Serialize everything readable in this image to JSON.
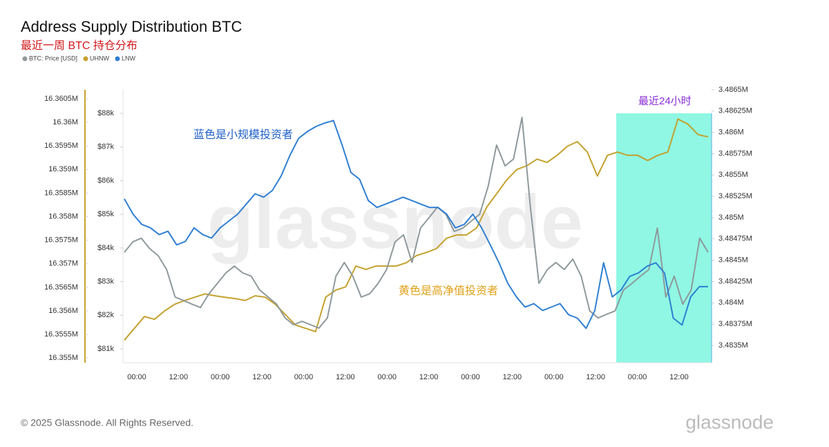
{
  "chart_data": {
    "type": "line",
    "title": "Address Supply Distribution BTC",
    "subtitle": "最近一周 BTC 持仓分布",
    "xticks": [
      "00:00",
      "12:00",
      "00:00",
      "12:00",
      "00:00",
      "12:00",
      "00:00",
      "12:00",
      "00:00",
      "12:00",
      "00:00",
      "12:00",
      "00:00",
      "12:00"
    ],
    "series": [
      {
        "name": "BTC: Price [USD]",
        "color": "#8f999c",
        "axis": "y",
        "values": [
          83870,
          84180,
          84290,
          83980,
          83770,
          83360,
          82540,
          82440,
          82330,
          82230,
          82640,
          82950,
          83260,
          83460,
          83260,
          83160,
          82750,
          82540,
          82330,
          81920,
          81720,
          81820,
          81720,
          81620,
          81920,
          83160,
          83570,
          83160,
          82540,
          82640,
          82950,
          83360,
          84180,
          84390,
          83570,
          84590,
          84900,
          85210,
          85000,
          84490,
          84590,
          84800,
          85000,
          85830,
          87060,
          86440,
          86640,
          87880,
          85210,
          82950,
          83360,
          83570,
          83360,
          83670,
          83160,
          82130,
          81920,
          82030,
          82130,
          82750,
          82950,
          83160,
          83360,
          84590,
          82540,
          83160,
          82330,
          82750,
          84290,
          83870
        ]
      },
      {
        "name": "UHNW",
        "color": "#c4a12e",
        "axis": "y3",
        "values": [
          16355380,
          16355630,
          16355880,
          16355820,
          16356000,
          16356140,
          16356220,
          16356290,
          16356360,
          16356320,
          16356290,
          16356260,
          16356220,
          16356320,
          16356290,
          16356140,
          16355920,
          16355700,
          16355630,
          16355560,
          16356290,
          16356440,
          16356510,
          16356950,
          16356880,
          16356950,
          16356950,
          16356950,
          16357020,
          16357170,
          16357240,
          16357320,
          16357540,
          16357610,
          16357610,
          16357760,
          16358200,
          16358490,
          16358780,
          16359000,
          16359080,
          16359220,
          16359150,
          16359300,
          16359490,
          16359590,
          16359370,
          16358860,
          16359300,
          16359370,
          16359300,
          16359300,
          16359190,
          16359300,
          16359370,
          16360070,
          16359960,
          16359740,
          16359690
        ]
      },
      {
        "name": "LNW",
        "color": "#2f7fd2",
        "axis": "y2",
        "values": [
          3485220,
          3485040,
          3484920,
          3484880,
          3484800,
          3484840,
          3484680,
          3484720,
          3484880,
          3484800,
          3484760,
          3484880,
          3484960,
          3485040,
          3485160,
          3485280,
          3485240,
          3485320,
          3485490,
          3485730,
          3485930,
          3486010,
          3486070,
          3486110,
          3486140,
          3485850,
          3485530,
          3485450,
          3485200,
          3485120,
          3485160,
          3485200,
          3485240,
          3485200,
          3485160,
          3485120,
          3485120,
          3485040,
          3484880,
          3484920,
          3485040,
          3484880,
          3484680,
          3484470,
          3484230,
          3484070,
          3483950,
          3483990,
          3483910,
          3483950,
          3483990,
          3483860,
          3483820,
          3483700,
          3483910,
          3484470,
          3484070,
          3484150,
          3484310,
          3484350,
          3484430,
          3484470,
          3484350,
          3483820,
          3483740,
          3484070,
          3484190,
          3484190
        ]
      }
    ],
    "ylim": [
      80590,
      88700
    ],
    "yticks": [
      {
        "value": 81000,
        "label": "$81k"
      },
      {
        "value": 82000,
        "label": "$82k"
      },
      {
        "value": 83000,
        "label": "$83k"
      },
      {
        "value": 84000,
        "label": "$84k"
      },
      {
        "value": 85000,
        "label": "$85k"
      },
      {
        "value": 86000,
        "label": "$86k"
      },
      {
        "value": 87000,
        "label": "$87k"
      },
      {
        "value": 88000,
        "label": "$88k"
      }
    ],
    "y3lim": [
      16354900,
      16360690
    ],
    "y3ticks": [
      {
        "value": 16355000,
        "label": "16.355M"
      },
      {
        "value": 16355500,
        "label": "16.3555M"
      },
      {
        "value": 16356000,
        "label": "16.356M"
      },
      {
        "value": 16356500,
        "label": "16.3565M"
      },
      {
        "value": 16357000,
        "label": "16.357M"
      },
      {
        "value": 16357500,
        "label": "16.3575M"
      },
      {
        "value": 16358000,
        "label": "16.358M"
      },
      {
        "value": 16358500,
        "label": "16.3585M"
      },
      {
        "value": 16359000,
        "label": "16.359M"
      },
      {
        "value": 16359500,
        "label": "16.3595M"
      },
      {
        "value": 16360000,
        "label": "16.36M"
      },
      {
        "value": 16360500,
        "label": "16.3605M"
      }
    ],
    "y2lim": [
      3483297,
      3486500
    ],
    "y2ticks": [
      {
        "value": 3483500,
        "label": "3.4835M"
      },
      {
        "value": 3483750,
        "label": "3.48375M"
      },
      {
        "value": 3484000,
        "label": "3.484M"
      },
      {
        "value": 3484250,
        "label": "3.48425M"
      },
      {
        "value": 3484500,
        "label": "3.4845M"
      },
      {
        "value": 3484750,
        "label": "3.48475M"
      },
      {
        "value": 3485000,
        "label": "3.485M"
      },
      {
        "value": 3485250,
        "label": "3.48525M"
      },
      {
        "value": 3485500,
        "label": "3.4855M"
      },
      {
        "value": 3485750,
        "label": "3.48575M"
      },
      {
        "value": 3486000,
        "label": "3.486M"
      },
      {
        "value": 3486250,
        "label": "3.48625M"
      },
      {
        "value": 3486500,
        "label": "3.4865M"
      }
    ],
    "annotations": [
      "蓝色是小规模投资者",
      "黄色是高净值投资者",
      "最近24小时"
    ],
    "watermark": "glassnode",
    "footer": "© 2025 Glassnode. All Rights Reserved.",
    "logo": "glassnode"
  }
}
